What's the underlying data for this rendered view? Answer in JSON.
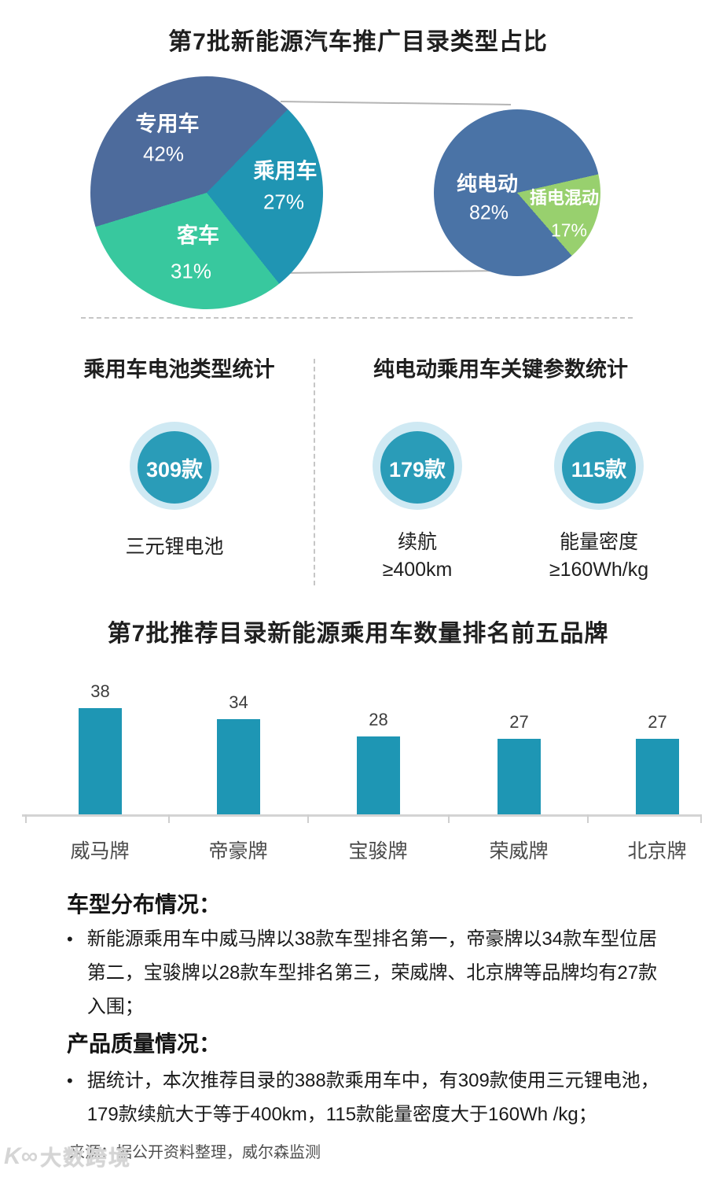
{
  "pie_section": {
    "title": "第7批新能源汽车推广目录类型占比"
  },
  "chart_data": [
    {
      "type": "pie",
      "title": "第7批新能源汽车推广目录类型占比",
      "labels": [
        "专用车",
        "乘用车",
        "客车"
      ],
      "values": [
        42,
        27,
        31
      ],
      "pct_labels": [
        "42%",
        "27%",
        "31%"
      ],
      "colors": [
        "#4d6b9c",
        "#2095b3",
        "#38c89e"
      ],
      "start_deg": 253,
      "unit": "%",
      "legend": "labels drawn inside slices"
    },
    {
      "type": "pie",
      "title": "",
      "labels": [
        "纯电动",
        "插电混动"
      ],
      "values": [
        82,
        17
      ],
      "pct_labels": [
        "82%",
        "17%"
      ],
      "colors": [
        "#4a73a6",
        "#98d06e"
      ],
      "start_deg": 139,
      "unit": "%",
      "legend": "labels drawn inside slices"
    },
    {
      "type": "bar",
      "title": "第7批推荐目录新能源乘用车数量排名前五品牌",
      "categories": [
        "威马牌",
        "帝豪牌",
        "宝骏牌",
        "荣威牌",
        "北京牌"
      ],
      "values": [
        38,
        34,
        28,
        27,
        27
      ],
      "bar_color": "#1e96b4",
      "ylim": [
        0,
        40
      ],
      "grid": false,
      "value_labels": "above bars"
    }
  ],
  "stats_section": {
    "left_title": "乘用车电池类型统计",
    "right_title": "纯电动乘用车关键参数统计",
    "circle_color": "#2a9cb8",
    "halo_color": "#cfe9f3",
    "items": [
      {
        "value": "309款",
        "line1": "三元锂电池",
        "line2": ""
      },
      {
        "value": "179款",
        "line1": "续航",
        "line2": "≥400km"
      },
      {
        "value": "115款",
        "line1": "能量密度",
        "line2": "≥160Wh/kg"
      }
    ]
  },
  "bar_section": {
    "title": "第7批推荐目录新能源乘用车数量排名前五品牌"
  },
  "analysis": {
    "bullet_glyph": "•",
    "sections": [
      {
        "heading": "车型分布情况：",
        "bullet": "新能源乘用车中威马牌以38款车型排名第一，帝豪牌以34款车型位居第二，宝骏牌以28款车型排名第三，荣威牌、北京牌等品牌均有27款入围；"
      },
      {
        "heading": "产品质量情况：",
        "bullet": "据统计，本次推荐目录的388款乘用车中，有309款使用三元锂电池，179款续航大于等于400km，115款能量密度大于160Wh /kg；"
      }
    ],
    "source": "来源：据公开资料整理，威尔森监测"
  },
  "watermark": {
    "logo": "K∞",
    "text": "大数跨境"
  }
}
